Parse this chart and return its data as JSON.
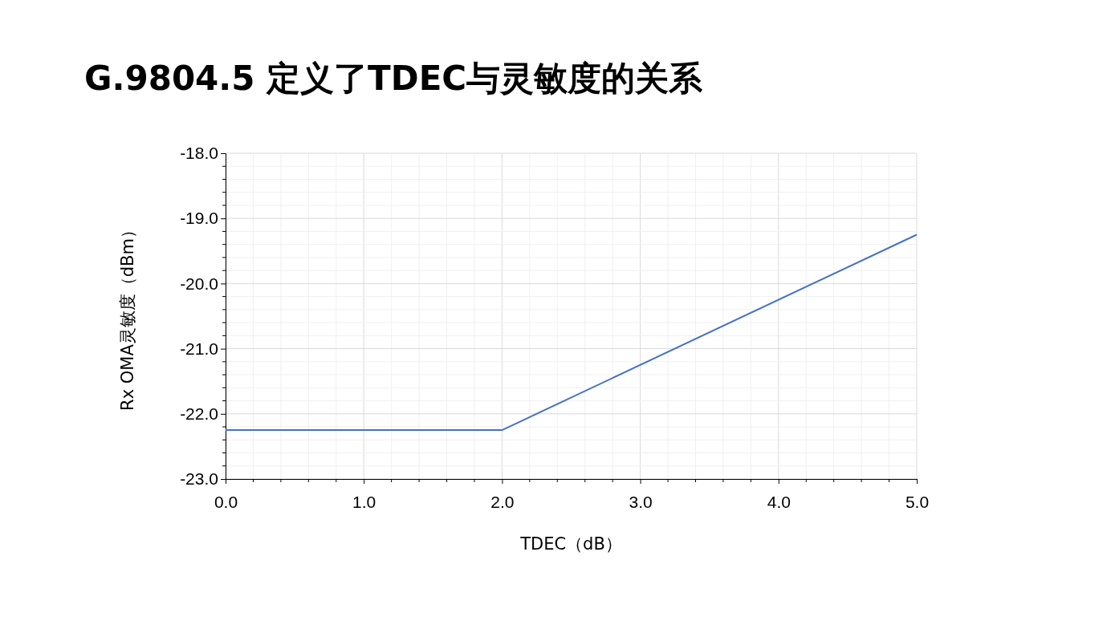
{
  "chart_data": {
    "type": "line",
    "title": "G.9804.5 定义了TDEC与灵敏度的关系",
    "xlabel": "TDEC（dB）",
    "ylabel": "Rx OMA灵敏度（dBm）",
    "x": [
      0,
      2,
      5
    ],
    "series": [
      {
        "color": "#4472c4",
        "values": [
          -22.25,
          -22.25,
          -19.25
        ]
      }
    ],
    "xlim": [
      0,
      5
    ],
    "xticks": [
      {
        "value": 0,
        "label": "0.0"
      },
      {
        "value": 1,
        "label": "1.0"
      },
      {
        "value": 2,
        "label": "2.0"
      },
      {
        "value": 3,
        "label": "3.0"
      },
      {
        "value": 4,
        "label": "4.0"
      },
      {
        "value": 5,
        "label": "5.0"
      }
    ],
    "ylim": [
      -23,
      -18
    ],
    "yticks": [
      {
        "value": -23,
        "label": "-23.0"
      },
      {
        "value": -22,
        "label": "-22.0"
      },
      {
        "value": -21,
        "label": "-21.0"
      },
      {
        "value": -20,
        "label": "-20.0"
      },
      {
        "value": -19,
        "label": "-19.0"
      },
      {
        "value": -18,
        "label": "-18.0"
      }
    ],
    "grid": true,
    "marker": "none",
    "line_style": "solid"
  }
}
